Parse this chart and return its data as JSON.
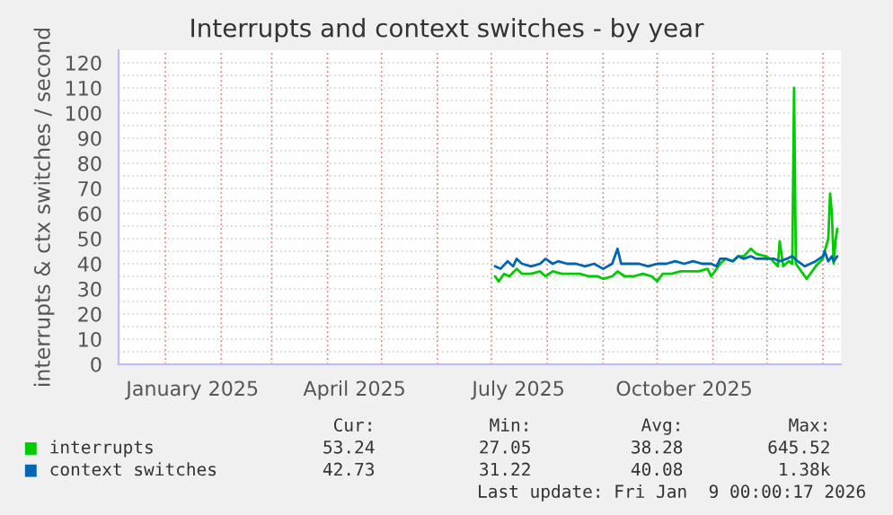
{
  "chart_data": {
    "type": "line",
    "title": "Interrupts and context switches - by year",
    "ylabel": "interrupts & ctx switches / second",
    "xlim": [
      "2024-12-06",
      "2026-01-11"
    ],
    "ylim": [
      0,
      125
    ],
    "xticks": [
      {
        "value": "2025-01-01",
        "label": null
      },
      {
        "value": "2025-01-16",
        "label": "January 2025"
      },
      {
        "value": "2025-02-01",
        "label": null
      },
      {
        "value": "2025-03-01",
        "label": null
      },
      {
        "value": "2025-04-01",
        "label": null
      },
      {
        "value": "2025-04-16",
        "label": "April 2025"
      },
      {
        "value": "2025-05-01",
        "label": null
      },
      {
        "value": "2025-06-01",
        "label": null
      },
      {
        "value": "2025-07-01",
        "label": null
      },
      {
        "value": "2025-07-16",
        "label": "July 2025"
      },
      {
        "value": "2025-08-01",
        "label": null
      },
      {
        "value": "2025-09-01",
        "label": null
      },
      {
        "value": "2025-10-01",
        "label": null
      },
      {
        "value": "2025-10-16",
        "label": "October 2025"
      },
      {
        "value": "2025-11-01",
        "label": null
      },
      {
        "value": "2025-12-01",
        "label": null
      },
      {
        "value": "2026-01-01",
        "label": null
      }
    ],
    "yticks": [
      0,
      10,
      20,
      30,
      40,
      50,
      60,
      70,
      80,
      90,
      100,
      110,
      120
    ],
    "grid": true,
    "legend": "bottom",
    "marker": "none",
    "line_style": "solid",
    "series": [
      {
        "name": "interrupts",
        "color": "#00cc00",
        "x": [
          "2025-07-03",
          "2025-07-05",
          "2025-07-08",
          "2025-07-11",
          "2025-07-15",
          "2025-07-18",
          "2025-07-23",
          "2025-07-28",
          "2025-07-31",
          "2025-08-04",
          "2025-08-09",
          "2025-08-14",
          "2025-08-19",
          "2025-08-24",
          "2025-08-29",
          "2025-09-01",
          "2025-09-06",
          "2025-09-09",
          "2025-09-13",
          "2025-09-18",
          "2025-09-23",
          "2025-09-28",
          "2025-10-01",
          "2025-10-04",
          "2025-10-09",
          "2025-10-14",
          "2025-10-19",
          "2025-10-24",
          "2025-10-29",
          "2025-10-31",
          "2025-11-05",
          "2025-11-08",
          "2025-11-12",
          "2025-11-15",
          "2025-11-18",
          "2025-11-22",
          "2025-11-25",
          "2025-11-30",
          "2025-12-03",
          "2025-12-07",
          "2025-12-08",
          "2025-12-10",
          "2025-12-13",
          "2025-12-15",
          "2025-12-16",
          "2025-12-17",
          "2025-12-20",
          "2025-12-23",
          "2025-12-25",
          "2025-12-28",
          "2026-01-01",
          "2026-01-02",
          "2026-01-04",
          "2026-01-05",
          "2026-01-06",
          "2026-01-07",
          "2026-01-08",
          "2026-01-09"
        ],
        "values": [
          35,
          33,
          36,
          35,
          38,
          36,
          36,
          37,
          35,
          37,
          36,
          36,
          36,
          35,
          35,
          34,
          35,
          37,
          35,
          35,
          36,
          35,
          33,
          36,
          36,
          37,
          37,
          37,
          38,
          35,
          40,
          42,
          41,
          43,
          43,
          46,
          44,
          43,
          42,
          39,
          49,
          39,
          41,
          40,
          110,
          40,
          37,
          34,
          36,
          39,
          42,
          45,
          50,
          68,
          60,
          40,
          49,
          54
        ]
      },
      {
        "name": "context switches",
        "color": "#0066b3",
        "x": [
          "2025-07-03",
          "2025-07-06",
          "2025-07-10",
          "2025-07-13",
          "2025-07-15",
          "2025-07-18",
          "2025-07-23",
          "2025-07-28",
          "2025-07-31",
          "2025-08-04",
          "2025-08-07",
          "2025-08-12",
          "2025-08-17",
          "2025-08-22",
          "2025-08-27",
          "2025-09-01",
          "2025-09-06",
          "2025-09-09",
          "2025-09-11",
          "2025-09-16",
          "2025-09-21",
          "2025-09-26",
          "2025-10-01",
          "2025-10-06",
          "2025-10-11",
          "2025-10-16",
          "2025-10-21",
          "2025-10-26",
          "2025-10-31",
          "2025-11-03",
          "2025-11-05",
          "2025-11-08",
          "2025-11-12",
          "2025-11-15",
          "2025-11-18",
          "2025-11-22",
          "2025-11-25",
          "2025-11-30",
          "2025-12-05",
          "2025-12-08",
          "2025-12-12",
          "2025-12-15",
          "2025-12-18",
          "2025-12-22",
          "2025-12-25",
          "2025-12-28",
          "2026-01-01",
          "2026-01-02",
          "2026-01-04",
          "2026-01-06",
          "2026-01-07",
          "2026-01-09"
        ],
        "values": [
          39,
          38,
          41,
          39,
          42,
          40,
          39,
          40,
          42,
          40,
          41,
          40,
          40,
          39,
          40,
          38,
          40,
          46,
          40,
          40,
          40,
          39,
          40,
          40,
          41,
          40,
          41,
          40,
          40,
          39,
          42,
          42,
          41,
          43,
          42,
          43,
          42,
          42,
          42,
          41,
          42,
          43,
          41,
          39,
          40,
          41,
          43,
          45,
          41,
          43,
          41,
          43
        ]
      }
    ],
    "annotations": [
      "Cur:",
      "Min:",
      "Avg:",
      "Max:",
      "53.24",
      "27.05",
      "38.28",
      "645.52",
      "42.73",
      "31.22",
      "40.08",
      "1.38k",
      "Last update: Fri Jan  9 00:00:17 2026"
    ]
  }
}
